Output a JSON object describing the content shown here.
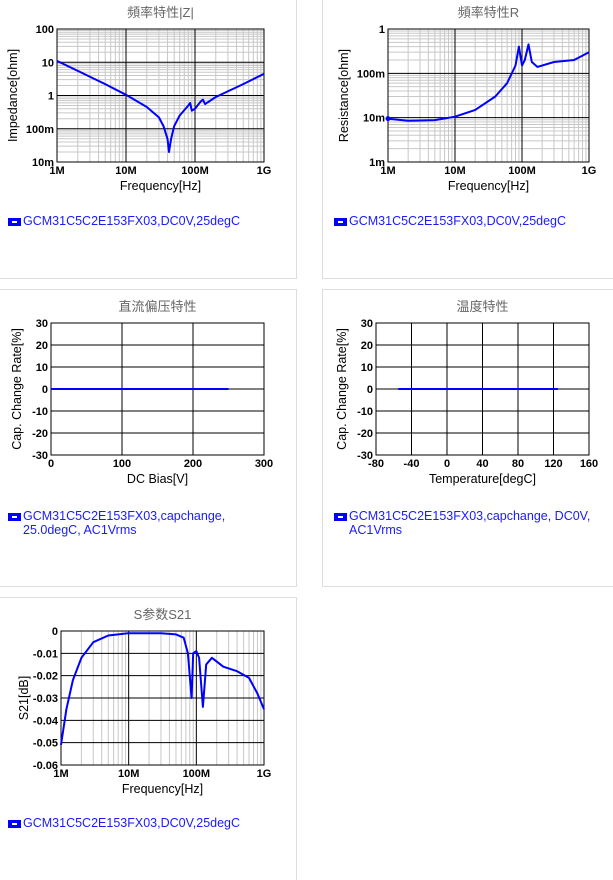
{
  "chart_data": [
    {
      "type": "line",
      "title": "頻率特性|Z|",
      "xlabel": "Frequency[Hz]",
      "ylabel": "Impedance[ohm]",
      "xscale": "log",
      "yscale": "log",
      "xlim": [
        1000000.0,
        1000000000.0
      ],
      "ylim": [
        0.01,
        100
      ],
      "xticks": [
        {
          "v": 1000000.0,
          "l": "1M"
        },
        {
          "v": 10000000.0,
          "l": "10M"
        },
        {
          "v": 100000000.0,
          "l": "100M"
        },
        {
          "v": 1000000000.0,
          "l": "1G"
        }
      ],
      "yticks": [
        {
          "v": 100,
          "l": "100"
        },
        {
          "v": 10,
          "l": "10"
        },
        {
          "v": 1,
          "l": "1"
        },
        {
          "v": 0.1,
          "l": "100m"
        },
        {
          "v": 0.01,
          "l": "10m"
        }
      ],
      "legend": "GCM31C5C2E153FX03,DC0V,25degC",
      "color": "#0000ff",
      "x": [
        1000000.0,
        2000000.0,
        5000000.0,
        10000000.0,
        20000000.0,
        30000000.0,
        35000000.0,
        40000000.0,
        42000000.0,
        45000000.0,
        50000000.0,
        60000000.0,
        80000000.0,
        85000000.0,
        90000000.0,
        100000000.0,
        120000000.0,
        130000000.0,
        140000000.0,
        200000000.0,
        500000000.0,
        1000000000.0
      ],
      "y": [
        11,
        5.5,
        2.2,
        1.05,
        0.45,
        0.22,
        0.12,
        0.05,
        0.02,
        0.05,
        0.12,
        0.25,
        0.5,
        0.6,
        0.35,
        0.4,
        0.65,
        0.75,
        0.55,
        0.9,
        2.2,
        4.5
      ]
    },
    {
      "type": "line",
      "title": "頻率特性R",
      "xlabel": "Frequency[Hz]",
      "ylabel": "Resistance[ohm]",
      "xscale": "log",
      "yscale": "log",
      "xlim": [
        1000000.0,
        1000000000.0
      ],
      "ylim": [
        0.001,
        1
      ],
      "xticks": [
        {
          "v": 1000000.0,
          "l": "1M"
        },
        {
          "v": 10000000.0,
          "l": "10M"
        },
        {
          "v": 100000000.0,
          "l": "100M"
        },
        {
          "v": 1000000000.0,
          "l": "1G"
        }
      ],
      "yticks": [
        {
          "v": 1,
          "l": "1"
        },
        {
          "v": 0.1,
          "l": "100m"
        },
        {
          "v": 0.01,
          "l": "10m"
        },
        {
          "v": 0.001,
          "l": "1m"
        }
      ],
      "legend": "GCM31C5C2E153FX03,DC0V,25degC",
      "color": "#0000ff",
      "marker_first": true,
      "x": [
        1000000.0,
        2000000.0,
        5000000.0,
        10000000.0,
        20000000.0,
        40000000.0,
        60000000.0,
        80000000.0,
        90000000.0,
        100000000.0,
        110000000.0,
        125000000.0,
        140000000.0,
        170000000.0,
        300000000.0,
        600000000.0,
        1000000000.0
      ],
      "y": [
        0.0095,
        0.0085,
        0.0088,
        0.0105,
        0.015,
        0.03,
        0.06,
        0.15,
        0.4,
        0.15,
        0.2,
        0.45,
        0.18,
        0.14,
        0.18,
        0.2,
        0.3
      ]
    },
    {
      "type": "line",
      "title": "直流偏压特性",
      "xlabel": "DC Bias[V]",
      "ylabel": "Cap. Change Rate[%]",
      "xscale": "linear",
      "yscale": "linear",
      "xlim": [
        0,
        300
      ],
      "ylim": [
        -30,
        30
      ],
      "xticks": [
        {
          "v": 0,
          "l": "0"
        },
        {
          "v": 100,
          "l": "100"
        },
        {
          "v": 200,
          "l": "200"
        },
        {
          "v": 300,
          "l": "300"
        }
      ],
      "yticks": [
        {
          "v": 30,
          "l": "30"
        },
        {
          "v": 20,
          "l": "20"
        },
        {
          "v": 10,
          "l": "10"
        },
        {
          "v": 0,
          "l": "0"
        },
        {
          "v": -10,
          "l": "-10"
        },
        {
          "v": -20,
          "l": "-20"
        },
        {
          "v": -30,
          "l": "-30"
        }
      ],
      "legend": "GCM31C5C2E153FX03,capchange, 25.0degC, AC1Vrms",
      "color": "#0000ff",
      "x": [
        0,
        250
      ],
      "y": [
        0,
        0
      ]
    },
    {
      "type": "line",
      "title": "温度特性",
      "xlabel": "Temperature[degC]",
      "ylabel": "Cap. Change Rate[%]",
      "xscale": "linear",
      "yscale": "linear",
      "xlim": [
        -80,
        160
      ],
      "ylim": [
        -30,
        30
      ],
      "xticks": [
        {
          "v": -80,
          "l": "-80"
        },
        {
          "v": -40,
          "l": "-40"
        },
        {
          "v": 0,
          "l": "0"
        },
        {
          "v": 40,
          "l": "40"
        },
        {
          "v": 80,
          "l": "80"
        },
        {
          "v": 120,
          "l": "120"
        },
        {
          "v": 160,
          "l": "160"
        }
      ],
      "yticks": [
        {
          "v": 30,
          "l": "30"
        },
        {
          "v": 20,
          "l": "20"
        },
        {
          "v": 10,
          "l": "10"
        },
        {
          "v": 0,
          "l": "0"
        },
        {
          "v": -10,
          "l": "-10"
        },
        {
          "v": -20,
          "l": "-20"
        },
        {
          "v": -30,
          "l": "-30"
        }
      ],
      "legend": "GCM31C5C2E153FX03,capchange, DC0V, AC1Vrms",
      "color": "#0000ff",
      "x": [
        -55,
        125
      ],
      "y": [
        0,
        0
      ]
    },
    {
      "type": "line",
      "title": "S参数S21",
      "xlabel": "Frequency[Hz]",
      "ylabel": "S21[dB]",
      "xscale": "log",
      "yscale": "linear",
      "xlim": [
        1000000.0,
        1000000000.0
      ],
      "ylim": [
        -0.06,
        0
      ],
      "xticks": [
        {
          "v": 1000000.0,
          "l": "1M"
        },
        {
          "v": 10000000.0,
          "l": "10M"
        },
        {
          "v": 100000000.0,
          "l": "100M"
        },
        {
          "v": 1000000000.0,
          "l": "1G"
        }
      ],
      "yticks": [
        {
          "v": 0,
          "l": "0"
        },
        {
          "v": -0.01,
          "l": "-0.01"
        },
        {
          "v": -0.02,
          "l": "-0.02"
        },
        {
          "v": -0.03,
          "l": "-0.03"
        },
        {
          "v": -0.04,
          "l": "-0.04"
        },
        {
          "v": -0.05,
          "l": "-0.05"
        },
        {
          "v": -0.06,
          "l": "-0.06"
        }
      ],
      "legend": "GCM31C5C2E153FX03,DC0V,25degC",
      "color": "#0000ff",
      "x": [
        1000000.0,
        1200000.0,
        1500000.0,
        2000000.0,
        3000000.0,
        5000000.0,
        10000000.0,
        30000000.0,
        50000000.0,
        65000000.0,
        75000000.0,
        85000000.0,
        90000000.0,
        100000000.0,
        110000000.0,
        125000000.0,
        140000000.0,
        170000000.0,
        250000000.0,
        400000000.0,
        600000000.0,
        800000000.0,
        1000000000.0
      ],
      "y": [
        -0.051,
        -0.035,
        -0.022,
        -0.012,
        -0.005,
        -0.002,
        -0.001,
        -0.001,
        -0.0015,
        -0.003,
        -0.01,
        -0.03,
        -0.01,
        -0.009,
        -0.012,
        -0.034,
        -0.015,
        -0.012,
        -0.016,
        -0.018,
        -0.021,
        -0.028,
        -0.035
      ]
    }
  ]
}
